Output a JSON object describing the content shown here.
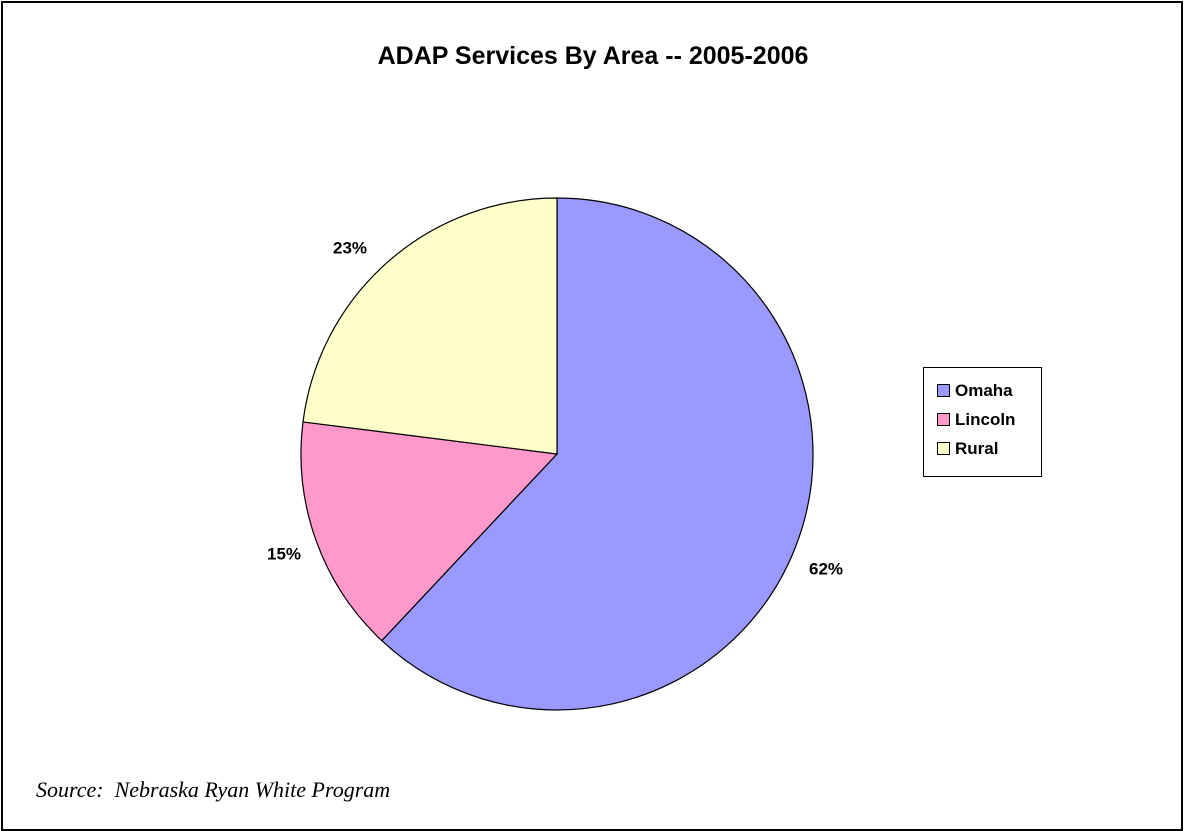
{
  "chart_data": {
    "type": "pie",
    "title": "ADAP Services By Area -- 2005-2006",
    "slices": [
      {
        "label": "Omaha",
        "value": 62,
        "display": "62%",
        "color": "#9999ff"
      },
      {
        "label": "Lincoln",
        "value": 15,
        "display": "15%",
        "color": "#ff99cc"
      },
      {
        "label": "Rural",
        "value": 23,
        "display": "23%",
        "color": "#ffffcc"
      }
    ],
    "start": "12 o'clock",
    "direction": "clockwise",
    "legend_position": "right"
  },
  "source_note": "Source:  Nebraska Ryan White Program"
}
